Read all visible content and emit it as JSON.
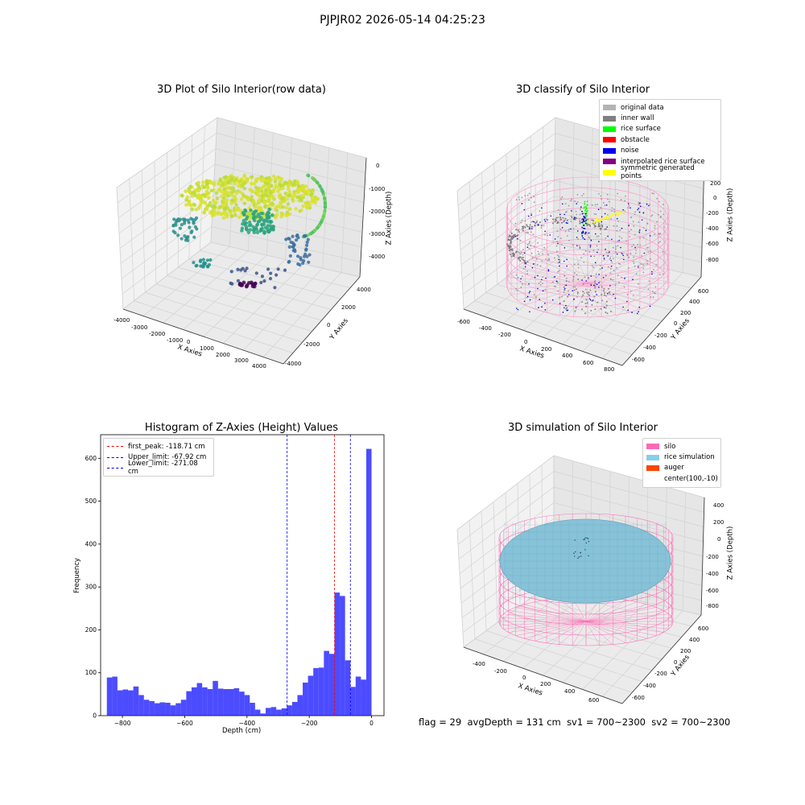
{
  "suptitle": "PJPJR02 2026-05-14 04:25:23",
  "chart_data": [
    {
      "type": "scatter",
      "title": "3D Plot of Silo Interior(row data)",
      "xlabel": "X Axies",
      "ylabel": "Y Axies",
      "zlabel": "Z Axies (Depth)",
      "x_ticks": [
        "-4000",
        "-3000",
        "-2000",
        "-1000",
        "0",
        "1000",
        "2000",
        "3000",
        "4000"
      ],
      "y_ticks": [
        "-4000",
        "-2000",
        "0",
        "2000",
        "4000"
      ],
      "z_ticks": [
        "0",
        "-1000",
        "-2000",
        "-3000",
        "-4000"
      ],
      "colormap": "viridis"
    },
    {
      "type": "scatter",
      "title": "3D classify of Silo Interior",
      "xlabel": "X Axies",
      "ylabel": "Y Axies",
      "zlabel": "Z Axies (Depth)",
      "x_ticks": [
        "-600",
        "-400",
        "-200",
        "0",
        "200",
        "400",
        "600",
        "800"
      ],
      "y_ticks": [
        "-600",
        "-400",
        "-200",
        "0",
        "200",
        "400",
        "600"
      ],
      "z_ticks": [
        "200",
        "0",
        "-200",
        "-400",
        "-600",
        "-800"
      ],
      "legend": [
        {
          "label": "original data",
          "color": "#b3b3b3"
        },
        {
          "label": "inner wall",
          "color": "#808080"
        },
        {
          "label": "rice surface",
          "color": "#00ff00"
        },
        {
          "label": "obstacle",
          "color": "#ff0000"
        },
        {
          "label": "noise",
          "color": "#0000ee"
        },
        {
          "label": "interpolated rice surface",
          "color": "#800080"
        },
        {
          "label": "symmetric generated points",
          "color": "#ffff00"
        }
      ]
    },
    {
      "type": "bar",
      "title": "Histogram of Z-Axies (Height) Values",
      "xlabel": "Depth (cm)",
      "ylabel": "Frequency",
      "xlim": [
        -870,
        40
      ],
      "ylim": [
        0,
        655
      ],
      "x_ticks": [
        -800,
        -600,
        -400,
        -200,
        0
      ],
      "y_ticks": [
        0,
        100,
        200,
        300,
        400,
        500,
        600
      ],
      "bin_start": -850,
      "bin_width": 17,
      "bar_color": "#0000ff",
      "values": [
        89,
        91,
        59,
        61,
        59,
        68,
        48,
        37,
        34,
        29,
        31,
        30,
        24,
        29,
        37,
        57,
        66,
        76,
        66,
        62,
        81,
        63,
        62,
        62,
        64,
        56,
        48,
        30,
        14,
        5,
        18,
        20,
        14,
        17,
        24,
        32,
        48,
        77,
        93,
        111,
        112,
        151,
        144,
        287,
        279,
        129,
        67,
        91,
        84,
        622
      ],
      "vlines": [
        {
          "label": "first_peak: -118.71 cm",
          "x": -118.71,
          "color": "#ff0000"
        },
        {
          "label": "Upper_limit: -67.92 cm",
          "x": -67.92,
          "color": "#0000ff"
        },
        {
          "label": "Lower_limit: -271.08 cm",
          "x": -271.08,
          "color": "#0000ff"
        }
      ]
    },
    {
      "type": "scatter",
      "title": "3D simulation of Silo Interior",
      "xlabel": "X Axies",
      "ylabel": "Y Axies",
      "zlabel": "Z Axies (Depth)",
      "x_ticks": [
        "-400",
        "-200",
        "0",
        "200",
        "400",
        "600"
      ],
      "y_ticks": [
        "-600",
        "-400",
        "-200",
        "0",
        "200",
        "400",
        "600"
      ],
      "z_ticks": [
        "400",
        "200",
        "0",
        "-200",
        "-400",
        "-600",
        "-800"
      ],
      "legend": [
        {
          "label": "silo",
          "color": "#ff69b4"
        },
        {
          "label": "rice simulation",
          "color": "#87ceeb"
        },
        {
          "label": "auger",
          "color": "#ff4500"
        },
        {
          "label": "center(100,-10)",
          "color": ""
        }
      ]
    }
  ],
  "footer": {
    "flag": "flag = 29",
    "avg_depth": "avgDepth = 131 cm",
    "sv1": "sv1 = 700~2300",
    "sv2": "sv2 = 700~2300"
  }
}
